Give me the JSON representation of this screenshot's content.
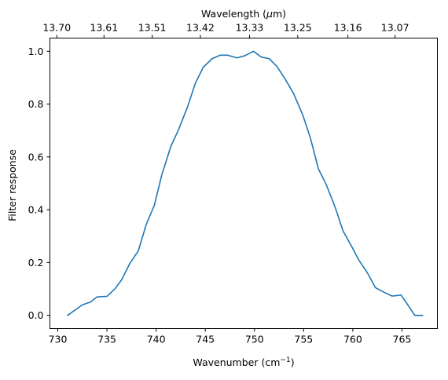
{
  "chart_data": {
    "type": "line",
    "title": "",
    "xlabel_bottom": "Wavenumber (cm",
    "xlabel_bottom_sup": "−1",
    "xlabel_bottom_close": ")",
    "xlabel_top_prefix": "Wavelength (",
    "xlabel_top_symbol": "μ",
    "xlabel_top_suffix": "m)",
    "ylabel": "Filter response",
    "xlim": [
      729.2,
      768.6
    ],
    "ylim": [
      -0.05,
      1.05
    ],
    "grid": false,
    "x_ticks": [
      730,
      735,
      740,
      745,
      750,
      755,
      760,
      765
    ],
    "x_tick_labels": [
      "730",
      "735",
      "740",
      "745",
      "750",
      "755",
      "760",
      "765"
    ],
    "y_ticks": [
      0.0,
      0.2,
      0.4,
      0.6,
      0.8,
      1.0
    ],
    "y_tick_labels": [
      "0.0",
      "0.2",
      "0.4",
      "0.6",
      "0.8",
      "1.0"
    ],
    "top_ticks": [
      729.9,
      734.7,
      739.6,
      744.5,
      749.5,
      754.4,
      759.5,
      764.3
    ],
    "top_tick_labels": [
      "13.70",
      "13.61",
      "13.51",
      "13.42",
      "13.33",
      "13.25",
      "13.16",
      "13.07"
    ],
    "series": [
      {
        "color": "#1f77b4",
        "x": [
          731.0,
          732.5,
          733.3,
          734.0,
          735.0,
          735.8,
          736.5,
          737.3,
          738.2,
          739.0,
          739.8,
          740.6,
          741.5,
          742.3,
          743.2,
          744.0,
          744.8,
          745.7,
          746.5,
          747.3,
          748.2,
          749.0,
          749.9,
          750.7,
          751.5,
          752.3,
          753.2,
          754.0,
          754.9,
          755.7,
          756.5,
          757.3,
          758.2,
          759.0,
          759.9,
          760.6,
          761.5,
          762.3,
          763.2,
          764.0,
          764.9,
          765.5,
          766.3,
          767.1
        ],
        "y": [
          0.0,
          0.04,
          0.05,
          0.07,
          0.072,
          0.1,
          0.135,
          0.195,
          0.245,
          0.345,
          0.415,
          0.535,
          0.64,
          0.705,
          0.79,
          0.88,
          0.94,
          0.972,
          0.985,
          0.985,
          0.975,
          0.983,
          1.0,
          0.978,
          0.972,
          0.942,
          0.89,
          0.838,
          0.76,
          0.67,
          0.555,
          0.495,
          0.41,
          0.32,
          0.26,
          0.21,
          0.16,
          0.105,
          0.087,
          0.073,
          0.077,
          0.045,
          0.0,
          0.0
        ]
      }
    ]
  }
}
